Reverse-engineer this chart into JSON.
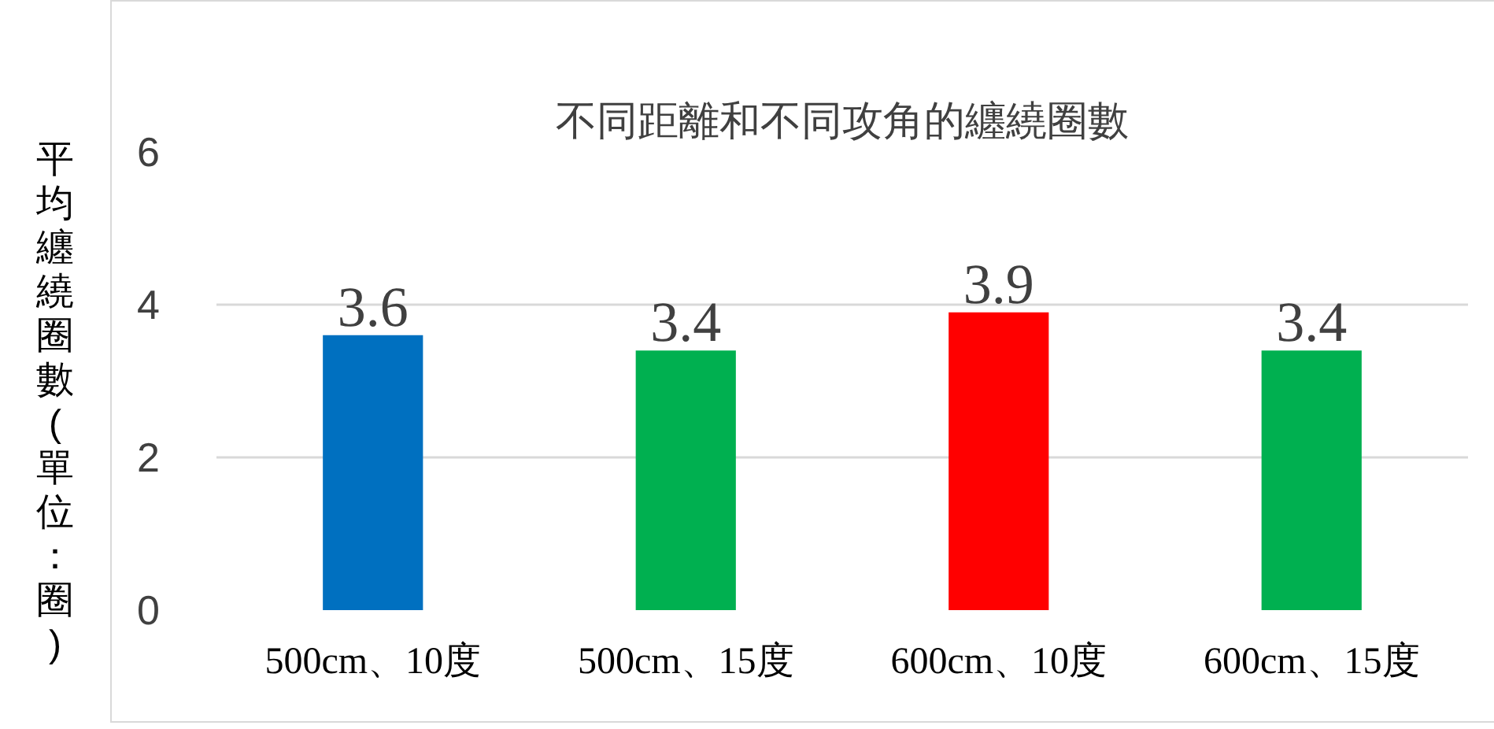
{
  "chart_data": {
    "type": "bar",
    "title": "不同距離和不同攻角的纏繞圈數",
    "ylabel": "平均纏繞圈數(單位：圈)",
    "categories": [
      "500cm、10度",
      "500cm、15度",
      "600cm、10度",
      "600cm、15度"
    ],
    "values": [
      3.6,
      3.4,
      3.9,
      3.4
    ],
    "colors": [
      "#0070c0",
      "#00b050",
      "#ff0000",
      "#00b050"
    ],
    "ylim": [
      0,
      6
    ],
    "yticks": [
      0,
      2,
      4,
      6
    ],
    "grid": "y",
    "data_labels": true
  }
}
